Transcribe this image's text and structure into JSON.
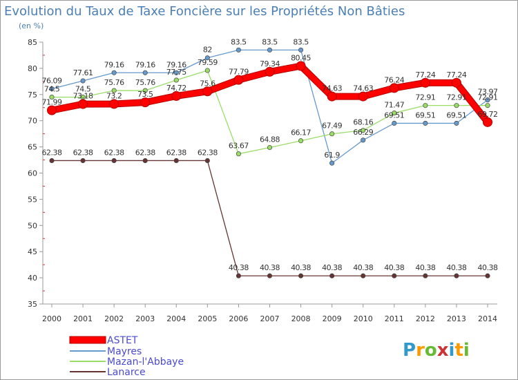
{
  "chart_data": {
    "type": "line",
    "title": "Evolution du Taux de Taxe Foncière sur les Propriétés Non Bâties",
    "subtitle": "(en %)",
    "ylim": [
      35,
      85
    ],
    "yticks": [
      35,
      40,
      45,
      50,
      55,
      60,
      65,
      70,
      75,
      80,
      85
    ],
    "categories": [
      "2000",
      "2001",
      "2002",
      "2003",
      "2004",
      "2005",
      "2006",
      "2007",
      "2008",
      "2009",
      "2010",
      "2011",
      "2012",
      "2013",
      "2014"
    ],
    "series": [
      {
        "name": "ASTET",
        "color": "#ff0000",
        "width": 8,
        "values": [
          71.99,
          73.18,
          73.2,
          73.5,
          74.72,
          75.6,
          77.79,
          79.34,
          80.45,
          74.63,
          74.63,
          76.24,
          77.24,
          77.24,
          69.72
        ],
        "labels": [
          "71.99",
          "73.18",
          "73.2",
          "73.5",
          "74.72",
          "75.6",
          "77.79",
          "79.34",
          "80.45",
          "74.63",
          "74.63",
          "76.24",
          "77.24",
          "77.24",
          "69.72"
        ]
      },
      {
        "name": "Mayres",
        "color": "#6699cc",
        "width": 1.3,
        "values": [
          76.09,
          77.61,
          79.16,
          79.16,
          79.16,
          82,
          83.5,
          83.5,
          83.5,
          61.9,
          66.29,
          69.51,
          69.51,
          69.51,
          73.97
        ],
        "labels": [
          "76.09",
          "77.61",
          "79.16",
          "79.16",
          "79.16",
          "82",
          "83.5",
          "83.5",
          "83.5",
          "61.9",
          "66.29",
          "69.51",
          "69.51",
          "69.51",
          "73.97"
        ]
      },
      {
        "name": "Mazan-l'Abbaye",
        "color": "#99dd66",
        "width": 1.3,
        "values": [
          74.5,
          74.5,
          75.76,
          75.76,
          77.75,
          79.59,
          63.67,
          64.88,
          66.17,
          67.49,
          68.16,
          71.47,
          72.91,
          72.91,
          72.91
        ],
        "labels": [
          "74.5",
          "74.5",
          "75.76",
          "75.76",
          "77.75",
          "79.59",
          "63.67",
          "64.88",
          "66.17",
          "67.49",
          "68.16",
          "71.47",
          "72.91",
          "72.91",
          "72.91"
        ]
      },
      {
        "name": "Lanarce",
        "color": "#663333",
        "width": 1.3,
        "values": [
          62.38,
          62.38,
          62.38,
          62.38,
          62.38,
          62.38,
          40.38,
          40.38,
          40.38,
          40.38,
          40.38,
          40.38,
          40.38,
          40.38,
          40.38
        ],
        "labels": [
          "62.38",
          "62.38",
          "62.38",
          "62.38",
          "62.38",
          "62.38",
          "40.38",
          "40.38",
          "40.38",
          "40.38",
          "40.38",
          "40.38",
          "40.38",
          "40.38",
          "40.38"
        ]
      }
    ],
    "legend": [
      "ASTET",
      "Mayres",
      "Mazan-l'Abbaye",
      "Lanarce"
    ],
    "legend_position": "bottom-left",
    "grid": false
  },
  "logo": {
    "letters": [
      "P",
      "r",
      "o",
      "x",
      "i",
      "t",
      "i"
    ],
    "colors": [
      "#3399cc",
      "#ff9900",
      "#66bb33",
      "#cc3333",
      "#3399cc",
      "#ff9900",
      "#66bb33"
    ]
  }
}
